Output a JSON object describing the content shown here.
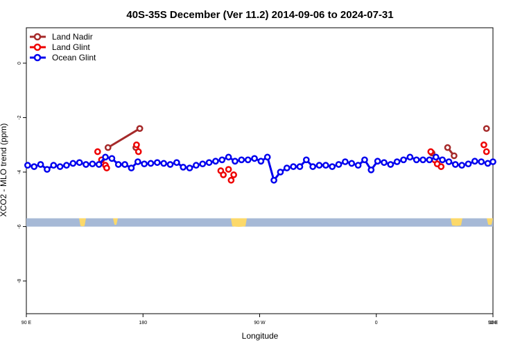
{
  "chart_data": {
    "type": "line",
    "title": "40S-35S December (Ver 11.2)   2014-09-06 to 2024-07-31",
    "xlabel": "Longitude",
    "ylabel": "XCO2 - MLO trend (ppm)",
    "xlim": [
      90,
      450
    ],
    "ylim": [
      -9.2,
      1.3
    ],
    "x_ticks": [
      {
        "value": 90,
        "label": "90 E"
      },
      {
        "value": 180,
        "label": "180"
      },
      {
        "value": 270,
        "label": "90 W"
      },
      {
        "value": 360,
        "label": "0"
      },
      {
        "value": 450,
        "label": "90 E"
      },
      {
        "value": 540,
        "label": "180"
      }
    ],
    "y_ticks": [
      {
        "value": 0,
        "label": "0"
      },
      {
        "value": -2,
        "label": "-2"
      },
      {
        "value": -4,
        "label": "-4"
      },
      {
        "value": -6,
        "label": "-6"
      },
      {
        "value": -8,
        "label": "-8"
      }
    ],
    "legend": {
      "position": "top-left"
    },
    "series": [
      {
        "name": "Land Nadir",
        "color": "#a52a2a",
        "x": [
          153,
          177.5,
          174.5,
          177.5,
          403,
          415,
          420,
          445
        ],
        "y": [
          -3.1,
          -2.4,
          -3.1,
          -2.4,
          -3.3,
          -3.1,
          -3.4,
          -2.4
        ],
        "segments": [
          [
            0,
            1
          ],
          [
            6,
            5
          ]
        ]
      },
      {
        "name": "Land Glint",
        "color": "#ee0000",
        "x": [
          145,
          148,
          151,
          152,
          175,
          176.5,
          240,
          242,
          246,
          248,
          250,
          402,
          405,
          407,
          410,
          443,
          445
        ],
        "y": [
          -3.25,
          -3.55,
          -3.75,
          -3.85,
          -3.0,
          -3.25,
          -3.95,
          -4.1,
          -3.9,
          -4.3,
          -4.1,
          -3.25,
          -3.55,
          -3.7,
          -3.8,
          -3.0,
          -3.25
        ],
        "segments": []
      },
      {
        "name": "Ocean Glint",
        "color": "#0000ee",
        "x": [
          91,
          96,
          101,
          106,
          111,
          116,
          121,
          126,
          131,
          136,
          141,
          146,
          151,
          156,
          161,
          166,
          171,
          176,
          181,
          186,
          191,
          196,
          201,
          206,
          211,
          216,
          221,
          226,
          231,
          236,
          241,
          246,
          251,
          256,
          261,
          266,
          271,
          276,
          281,
          286,
          291,
          296,
          301,
          306,
          311,
          316,
          321,
          326,
          331,
          336,
          341,
          346,
          351,
          356,
          361,
          366,
          371,
          376,
          381,
          386,
          391,
          396,
          401,
          406,
          411,
          416,
          421,
          426,
          431,
          436,
          441,
          446,
          450
        ],
        "y": [
          -3.75,
          -3.8,
          -3.72,
          -3.9,
          -3.75,
          -3.8,
          -3.75,
          -3.68,
          -3.65,
          -3.72,
          -3.7,
          -3.72,
          -3.45,
          -3.5,
          -3.72,
          -3.72,
          -3.85,
          -3.62,
          -3.7,
          -3.68,
          -3.65,
          -3.68,
          -3.72,
          -3.65,
          -3.82,
          -3.85,
          -3.75,
          -3.7,
          -3.65,
          -3.6,
          -3.55,
          -3.45,
          -3.6,
          -3.55,
          -3.55,
          -3.5,
          -3.6,
          -3.45,
          -4.3,
          -4.0,
          -3.85,
          -3.8,
          -3.8,
          -3.55,
          -3.8,
          -3.75,
          -3.75,
          -3.8,
          -3.72,
          -3.62,
          -3.68,
          -3.75,
          -3.55,
          -3.92,
          -3.6,
          -3.65,
          -3.72,
          -3.62,
          -3.55,
          -3.45,
          -3.55,
          -3.55,
          -3.55,
          -3.45,
          -3.55,
          -3.62,
          -3.72,
          -3.75,
          -3.7,
          -3.6,
          -3.62,
          -3.68,
          -3.62
        ],
        "segments": "all"
      }
    ],
    "inset_bar": {
      "y": -5.85,
      "band_color": "#a6b9d6",
      "land_color": "#fcd96a",
      "description_hint": "world map strip at 40S-35S latitude band"
    }
  }
}
